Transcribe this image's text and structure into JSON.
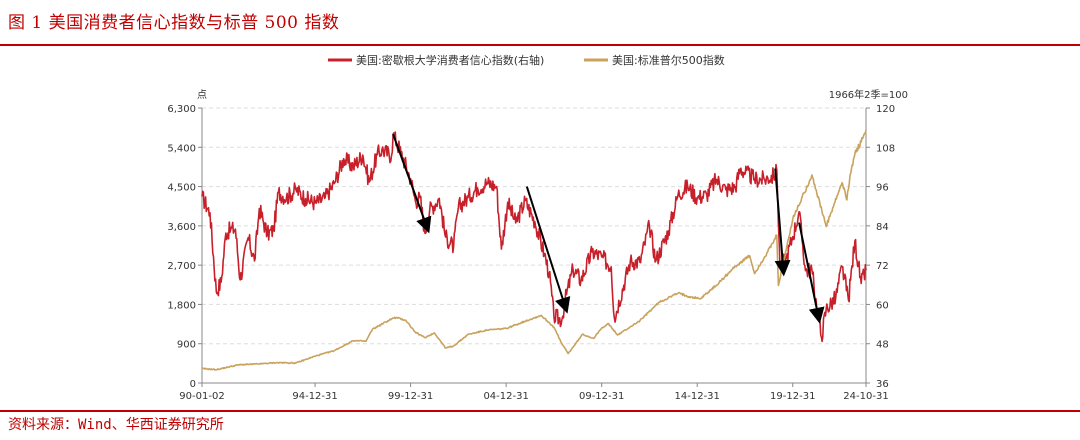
{
  "header": {
    "title": "图 1  美国消费者信心指数与标普 500 指数"
  },
  "footer": {
    "source": "资料来源：Wind、华西证券研究所"
  },
  "colors": {
    "accent": "#c00000",
    "consumer": "#c8202a",
    "sp500": "#c9a25e",
    "arrow": "#000000",
    "grid": "#dddddd"
  },
  "chart_data": {
    "type": "line",
    "left_axis_label": "点",
    "right_axis_label": "1966年2季=100",
    "yleft_ticks": [
      "6,300",
      "5,400",
      "4,500",
      "3,600",
      "2,700",
      "1,800",
      "900",
      "0"
    ],
    "yright_ticks": [
      "120",
      "108",
      "96",
      "84",
      "72",
      "60",
      "48",
      "36"
    ],
    "yleft_lim": [
      0,
      6300
    ],
    "yright_lim": [
      36,
      120
    ],
    "x_lim": [
      "1990-01",
      "2024-10"
    ],
    "x_ticks": [
      "90-01-02",
      "94-12-31",
      "99-12-31",
      "04-12-31",
      "09-12-31",
      "14-12-31",
      "19-12-31",
      "24-10-31"
    ],
    "grid": "horizontal dashed",
    "legend_position": "top-center",
    "series": [
      {
        "name": "美国:密歇根大学消费者信心指数(右轴)",
        "axis": "right",
        "points": [
          [
            "1990-01",
            93.0
          ],
          [
            "1990-06",
            88.0
          ],
          [
            "1990-10",
            63.9
          ],
          [
            "1991-01",
            66.8
          ],
          [
            "1991-04",
            81.8
          ],
          [
            "1991-07",
            82.9
          ],
          [
            "1991-10",
            83.0
          ],
          [
            "1992-01",
            67.5
          ],
          [
            "1992-06",
            80.4
          ],
          [
            "1992-10",
            73.3
          ],
          [
            "1993-01",
            89.3
          ],
          [
            "1993-06",
            81.5
          ],
          [
            "1993-10",
            82.7
          ],
          [
            "1994-01",
            94.3
          ],
          [
            "1994-06",
            92.5
          ],
          [
            "1994-12",
            95.1
          ],
          [
            "1995-06",
            92.3
          ],
          [
            "1995-12",
            91.0
          ],
          [
            "1996-06",
            92.4
          ],
          [
            "1996-12",
            96.9
          ],
          [
            "1997-06",
            104.5
          ],
          [
            "1997-12",
            102.1
          ],
          [
            "1998-06",
            105.6
          ],
          [
            "1998-10",
            97.4
          ],
          [
            "1999-03",
            105.7
          ],
          [
            "1999-06",
            107.3
          ],
          [
            "1999-12",
            105.4
          ],
          [
            "2000-01",
            112.0
          ],
          [
            "2000-06",
            106.4
          ],
          [
            "2000-12",
            98.4
          ],
          [
            "2001-03",
            91.5
          ],
          [
            "2001-06",
            92.6
          ],
          [
            "2001-09",
            81.8
          ],
          [
            "2001-12",
            88.8
          ],
          [
            "2002-06",
            92.4
          ],
          [
            "2002-10",
            80.6
          ],
          [
            "2003-03",
            77.6
          ],
          [
            "2003-06",
            89.7
          ],
          [
            "2003-12",
            92.6
          ],
          [
            "2004-06",
            95.6
          ],
          [
            "2004-12",
            97.1
          ],
          [
            "2005-06",
            96.0
          ],
          [
            "2005-09",
            76.9
          ],
          [
            "2006-01",
            91.2
          ],
          [
            "2006-06",
            84.9
          ],
          [
            "2006-12",
            91.7
          ],
          [
            "2007-06",
            85.3
          ],
          [
            "2007-12",
            75.5
          ],
          [
            "2008-03",
            69.5
          ],
          [
            "2008-06",
            56.4
          ],
          [
            "2008-11",
            55.3
          ],
          [
            "2009-01",
            61.2
          ],
          [
            "2009-06",
            70.8
          ],
          [
            "2009-11",
            67.4
          ],
          [
            "2010-06",
            76.0
          ],
          [
            "2010-12",
            74.5
          ],
          [
            "2011-06",
            71.5
          ],
          [
            "2011-08",
            55.8
          ],
          [
            "2012-06",
            73.2
          ],
          [
            "2012-12",
            72.9
          ],
          [
            "2013-06",
            84.1
          ],
          [
            "2013-10",
            73.2
          ],
          [
            "2014-06",
            82.5
          ],
          [
            "2014-12",
            93.6
          ],
          [
            "2015-06",
            96.1
          ],
          [
            "2015-12",
            92.6
          ],
          [
            "2016-06",
            93.5
          ],
          [
            "2016-12",
            98.2
          ],
          [
            "2017-06",
            95.0
          ],
          [
            "2017-12",
            95.9
          ],
          [
            "2018-03",
            101.4
          ],
          [
            "2018-12",
            98.3
          ],
          [
            "2019-06",
            98.2
          ],
          [
            "2019-12",
            99.3
          ],
          [
            "2020-02",
            101.0
          ],
          [
            "2020-04",
            71.8
          ],
          [
            "2020-08",
            74.1
          ],
          [
            "2020-12",
            80.7
          ],
          [
            "2021-04",
            88.3
          ],
          [
            "2021-08",
            70.3
          ],
          [
            "2021-12",
            70.6
          ],
          [
            "2022-03",
            59.4
          ],
          [
            "2022-06",
            50.0
          ],
          [
            "2022-09",
            58.6
          ],
          [
            "2023-03",
            62.0
          ],
          [
            "2023-07",
            71.5
          ],
          [
            "2023-11",
            61.3
          ],
          [
            "2024-03",
            79.4
          ],
          [
            "2024-07",
            66.4
          ],
          [
            "2024-10",
            70.5
          ]
        ]
      },
      {
        "name": "美国:标准普尔500指数",
        "axis": "left",
        "points": [
          [
            "1990-01",
            330
          ],
          [
            "1990-10",
            305
          ],
          [
            "1991-12",
            417
          ],
          [
            "1992-12",
            435
          ],
          [
            "1993-12",
            466
          ],
          [
            "1994-12",
            459
          ],
          [
            "1995-12",
            615
          ],
          [
            "1996-12",
            740
          ],
          [
            "1997-12",
            970
          ],
          [
            "1998-08",
            957
          ],
          [
            "1998-12",
            1229
          ],
          [
            "1999-12",
            1469
          ],
          [
            "2000-03",
            1498
          ],
          [
            "2000-09",
            1436
          ],
          [
            "2001-03",
            1160
          ],
          [
            "2001-09",
            1040
          ],
          [
            "2002-03",
            1147
          ],
          [
            "2002-10",
            800
          ],
          [
            "2003-03",
            849
          ],
          [
            "2003-12",
            1111
          ],
          [
            "2004-12",
            1212
          ],
          [
            "2005-12",
            1248
          ],
          [
            "2006-12",
            1418
          ],
          [
            "2007-10",
            1549
          ],
          [
            "2008-06",
            1280
          ],
          [
            "2008-11",
            896
          ],
          [
            "2009-03",
            676
          ],
          [
            "2009-12",
            1115
          ],
          [
            "2010-07",
            1022
          ],
          [
            "2010-12",
            1257
          ],
          [
            "2011-04",
            1363
          ],
          [
            "2011-10",
            1099
          ],
          [
            "2012-12",
            1426
          ],
          [
            "2013-12",
            1848
          ],
          [
            "2014-12",
            2059
          ],
          [
            "2015-08",
            1972
          ],
          [
            "2016-02",
            1932
          ],
          [
            "2016-12",
            2239
          ],
          [
            "2017-12",
            2674
          ],
          [
            "2018-09",
            2914
          ],
          [
            "2018-12",
            2507
          ],
          [
            "2019-12",
            3231
          ],
          [
            "2020-02",
            3386
          ],
          [
            "2020-03",
            2237
          ],
          [
            "2020-12",
            3756
          ],
          [
            "2021-12",
            4766
          ],
          [
            "2022-09",
            3586
          ],
          [
            "2023-07",
            4589
          ],
          [
            "2023-10",
            4194
          ],
          [
            "2023-12",
            4770
          ],
          [
            "2024-03",
            5254
          ],
          [
            "2024-07",
            5522
          ],
          [
            "2024-10",
            5800
          ]
        ]
      }
    ],
    "annotations": [
      {
        "type": "arrow",
        "from": [
          "2000-01",
          112.0
        ],
        "to": [
          "2001-10",
          84.0
        ]
      },
      {
        "type": "arrow",
        "from": [
          "2007-01",
          96.0
        ],
        "to": [
          "2009-01",
          59.5
        ]
      },
      {
        "type": "arrow",
        "from": [
          "2020-01",
          101.5
        ],
        "to": [
          "2020-06",
          71.0
        ]
      },
      {
        "type": "arrow",
        "from": [
          "2021-04",
          85.0
        ],
        "to": [
          "2022-04",
          56.5
        ]
      }
    ]
  }
}
